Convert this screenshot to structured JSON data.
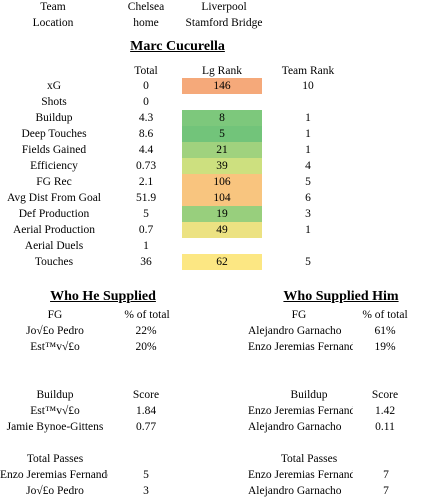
{
  "header": {
    "team_label": "Team",
    "location_label": "Location",
    "home_team": "Chelsea",
    "home_location": "home",
    "away_team": "Liverpool",
    "away_location": "Stamford Bridge"
  },
  "player_name": "Marc Cucurella",
  "stats_table": {
    "columns": {
      "total": "Total",
      "lg_rank": "Lg Rank",
      "team_rank": "Team Rank"
    },
    "rows": [
      {
        "label": "xG",
        "total": "0",
        "lg_rank": "146",
        "team_rank": "10",
        "color": "#f5a97a"
      },
      {
        "label": "Shots",
        "total": "0",
        "lg_rank": "",
        "team_rank": "",
        "color": ""
      },
      {
        "label": "Buildup",
        "total": "4.3",
        "lg_rank": "8",
        "team_rank": "1",
        "color": "#7dc87c"
      },
      {
        "label": "Deep Touches",
        "total": "8.6",
        "lg_rank": "5",
        "team_rank": "1",
        "color": "#72c47a"
      },
      {
        "label": "Fields Gained",
        "total": "4.4",
        "lg_rank": "21",
        "team_rank": "1",
        "color": "#a0d27e"
      },
      {
        "label": "Efficiency",
        "total": "0.73",
        "lg_rank": "39",
        "team_rank": "4",
        "color": "#cde07f"
      },
      {
        "label": "FG Rec",
        "total": "2.1",
        "lg_rank": "106",
        "team_rank": "5",
        "color": "#f9c47e"
      },
      {
        "label": "Avg Dist From Goal",
        "total": "51.9",
        "lg_rank": "104",
        "team_rank": "6",
        "color": "#f8c57f"
      },
      {
        "label": "Def Production",
        "total": "5",
        "lg_rank": "19",
        "team_rank": "3",
        "color": "#98cf7d"
      },
      {
        "label": "Aerial Production",
        "total": "0.7",
        "lg_rank": "49",
        "team_rank": "1",
        "color": "#ece282"
      },
      {
        "label": "Aerial Duels",
        "total": "1",
        "lg_rank": "",
        "team_rank": "",
        "color": ""
      },
      {
        "label": "Touches",
        "total": "36",
        "lg_rank": "62",
        "team_rank": "5",
        "color": "#fce783"
      }
    ]
  },
  "supplied": {
    "title": "Who He Supplied",
    "fg_header": "FG",
    "pct_header": "% of total",
    "fg_rows": [
      {
        "name": "Jo√£o Pedro",
        "value": "22%"
      },
      {
        "name": "Est™v√£o",
        "value": "20%"
      }
    ],
    "buildup_header": "Buildup",
    "score_header": "Score",
    "buildup_rows": [
      {
        "name": "Est™v√£o",
        "value": "1.84"
      },
      {
        "name": "Jamie Bynoe-Gittens",
        "value": "0.77"
      }
    ],
    "passes_header": "Total Passes",
    "passes_rows": [
      {
        "name": "Enzo Jeremias Fernandez",
        "value": "5"
      },
      {
        "name": "Jo√£o Pedro",
        "value": "3"
      }
    ]
  },
  "supplied_him": {
    "title": "Who Supplied Him",
    "fg_header": "FG",
    "pct_header": "% of total",
    "fg_rows": [
      {
        "name": "Alejandro Garnacho",
        "value": "61%"
      },
      {
        "name": "Enzo Jeremias Fernandez",
        "value": "19%"
      }
    ],
    "buildup_header": "Buildup",
    "score_header": "Score",
    "buildup_rows": [
      {
        "name": "Enzo Jeremias Fernandez",
        "value": "1.42"
      },
      {
        "name": "Alejandro Garnacho",
        "value": "0.11"
      }
    ],
    "passes_header": "Total Passes",
    "passes_rows": [
      {
        "name": "Enzo Jeremias Fernandez",
        "value": "7"
      },
      {
        "name": "Alejandro Garnacho",
        "value": "7"
      }
    ]
  }
}
